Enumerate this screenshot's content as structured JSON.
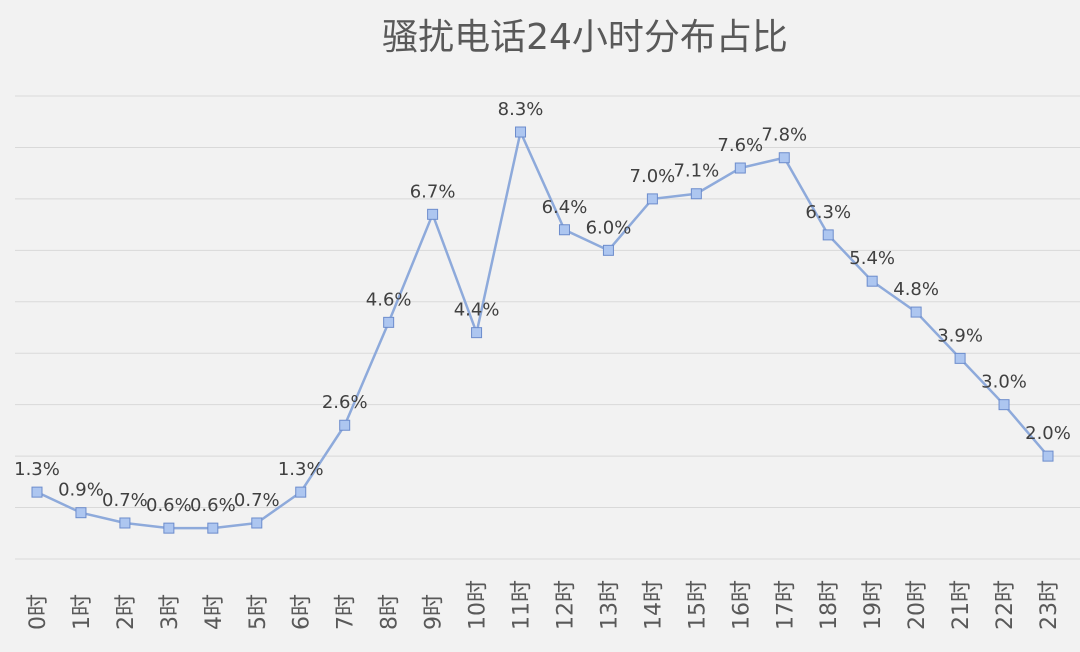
{
  "chart_data": {
    "type": "line",
    "title": "骚扰电话24小时分布占比",
    "categories": [
      "0时",
      "1时",
      "2时",
      "3时",
      "4时",
      "5时",
      "6时",
      "7时",
      "8时",
      "9时",
      "10时",
      "11时",
      "12时",
      "13时",
      "14时",
      "15时",
      "16时",
      "17时",
      "18时",
      "19时",
      "20时",
      "21时",
      "22时",
      "23时"
    ],
    "values": [
      1.3,
      0.9,
      0.7,
      0.6,
      0.6,
      0.7,
      1.3,
      2.6,
      4.6,
      6.7,
      4.4,
      8.3,
      6.4,
      6.0,
      7.0,
      7.1,
      7.6,
      7.8,
      6.3,
      5.4,
      4.8,
      3.9,
      3.0,
      2.0
    ],
    "data_labels": [
      "1.3%",
      "0.9%",
      "0.7%",
      "0.6%",
      "0.6%",
      "0.7%",
      "1.3%",
      "2.6%",
      "4.6%",
      "6.7%",
      "4.4%",
      "8.3%",
      "6.4%",
      "6.0%",
      "7.0%",
      "7.1%",
      "7.6%",
      "7.8%",
      "6.3%",
      "5.4%",
      "4.8%",
      "3.9%",
      "3.0%",
      "2.0%"
    ],
    "ylim": [
      0,
      9
    ],
    "grid": true,
    "y_axis_labels_shown": false,
    "legend": "none",
    "colors": {
      "line": "#8eaadb",
      "marker_fill": "#adc6f0",
      "marker_stroke": "#6c8ccc",
      "grid": "#d9d9d9"
    }
  }
}
